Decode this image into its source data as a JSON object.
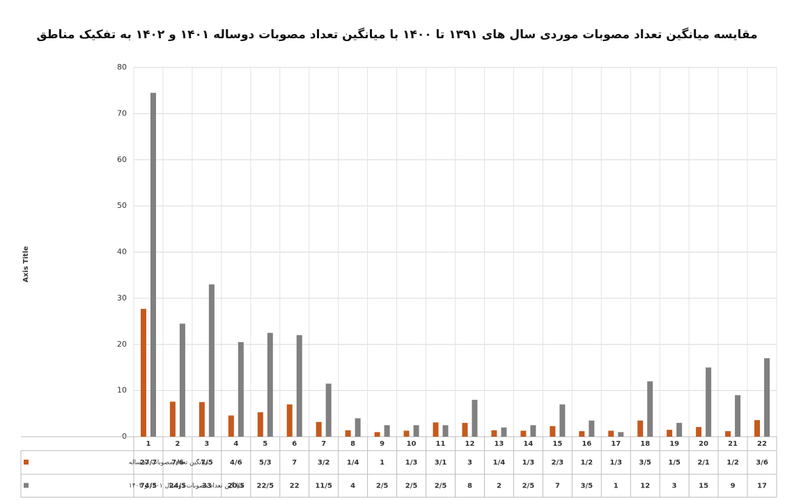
{
  "chart_data": {
    "type": "bar",
    "title": "مقایسه میانگین تعداد مصوبات موردی سال های ۱۳۹۱ تا ۱۴۰۰ با میانگین تعداد مصوبات دوساله ۱۴۰۱ و ۱۴۰۲ به تفکیک مناطق",
    "y_label": "Axis Title",
    "categories": [
      "1",
      "2",
      "3",
      "4",
      "5",
      "6",
      "7",
      "8",
      "9",
      "10",
      "11",
      "12",
      "13",
      "14",
      "15",
      "16",
      "17",
      "18",
      "19",
      "20",
      "21",
      "22"
    ],
    "series": [
      {
        "name": "میانگین تعداد مصوبات ده ساله",
        "color": "#c55a1e",
        "values": [
          27.7,
          7.6,
          7.5,
          4.6,
          5.3,
          7,
          3.2,
          1.4,
          1,
          1.3,
          3.1,
          3,
          1.4,
          1.3,
          2.3,
          1.2,
          1.3,
          3.5,
          1.5,
          2.1,
          1.2,
          3.6
        ],
        "value_labels": [
          "27/7",
          "7/6",
          "7/5",
          "4/6",
          "5/3",
          "7",
          "3/2",
          "1/4",
          "1",
          "1/3",
          "3/1",
          "3",
          "1/4",
          "1/3",
          "2/3",
          "1/2",
          "1/3",
          "3/5",
          "1/5",
          "2/1",
          "1/2",
          "3/6"
        ]
      },
      {
        "name": "میانگین تعداد مصوبات دو سال ۱۴۰۱ و ۱۴۰۲",
        "color": "#808080",
        "values": [
          74.5,
          24.5,
          33,
          20.5,
          22.5,
          22,
          11.5,
          4,
          2.5,
          2.5,
          2.5,
          8,
          2,
          2.5,
          7,
          3.5,
          1,
          12,
          3,
          15,
          9,
          17
        ],
        "value_labels": [
          "74/5",
          "24/5",
          "33",
          "20/5",
          "22/5",
          "22",
          "11/5",
          "4",
          "2/5",
          "2/5",
          "2/5",
          "8",
          "2",
          "2/5",
          "7",
          "3/5",
          "1",
          "12",
          "3",
          "15",
          "9",
          "17"
        ]
      }
    ],
    "ylim": [
      0,
      80
    ],
    "yticks": [
      0,
      10,
      20,
      30,
      40,
      50,
      60,
      70,
      80
    ],
    "grid": true
  }
}
